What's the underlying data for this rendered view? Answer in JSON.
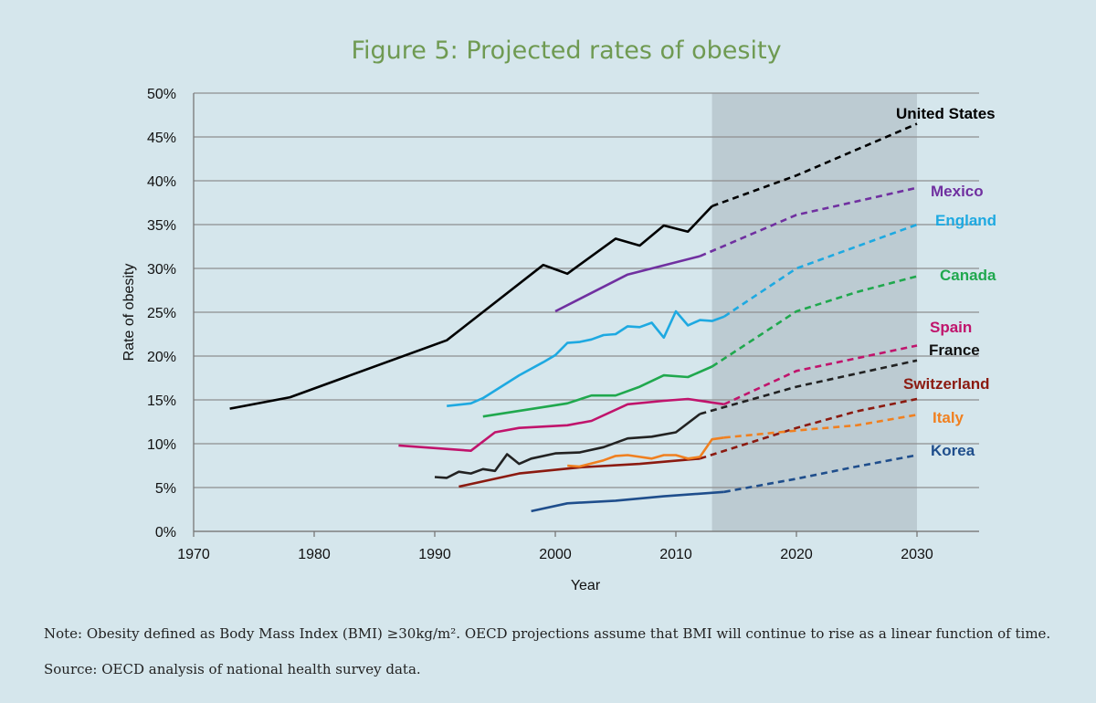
{
  "title": "Figure 5: Projected rates of obesity",
  "note": "Note: Obesity defined as Body Mass Index (BMI) ≥30kg/m². OECD projections assume that BMI will continue to rise as a linear function of time.",
  "source": "Source: OECD analysis of national health survey data.",
  "colors": {
    "background": "#d5e6ec",
    "projection_band": "#bccbd2",
    "title": "#6f9a52"
  },
  "chart_data": {
    "type": "line",
    "title": "Figure 5: Projected rates of obesity",
    "xlabel": "Year",
    "ylabel": "Rate of obesity",
    "xlim": [
      1970,
      2035
    ],
    "ylim": [
      0,
      50
    ],
    "x_ticks": [
      1970,
      1980,
      1990,
      2000,
      2010,
      2020,
      2030
    ],
    "y_ticks": [
      "0%",
      "5%",
      "10%",
      "15%",
      "20%",
      "25%",
      "30%",
      "35%",
      "40%",
      "45%",
      "50%"
    ],
    "y_tick_values": [
      0,
      5,
      10,
      15,
      20,
      25,
      30,
      35,
      40,
      45,
      50
    ],
    "grid": "horizontal",
    "projection_region": [
      2013,
      2030
    ],
    "series": [
      {
        "name": "United States",
        "color": "#000000",
        "actual": [
          [
            1973,
            14
          ],
          [
            1978,
            15.3
          ],
          [
            1991,
            21.8
          ],
          [
            1999,
            30.4
          ],
          [
            2000,
            29.9
          ],
          [
            2001,
            29.4
          ],
          [
            2005,
            33.4
          ],
          [
            2007,
            32.6
          ],
          [
            2009,
            34.9
          ],
          [
            2011,
            34.2
          ],
          [
            2013,
            37.1
          ]
        ],
        "projected": [
          [
            2013,
            37.1
          ],
          [
            2020,
            40.6
          ],
          [
            2030,
            46.5
          ]
        ]
      },
      {
        "name": "Mexico",
        "color": "#7030a0",
        "actual": [
          [
            2000,
            25.1
          ],
          [
            2006,
            29.3
          ],
          [
            2012,
            31.4
          ]
        ],
        "projected": [
          [
            2012,
            31.4
          ],
          [
            2020,
            36.1
          ],
          [
            2030,
            39.2
          ]
        ]
      },
      {
        "name": "England",
        "color": "#1ea9e1",
        "actual": [
          [
            1991,
            14.3
          ],
          [
            1993,
            14.6
          ],
          [
            1994,
            15.2
          ],
          [
            1997,
            17.8
          ],
          [
            1999,
            19.3
          ],
          [
            2000,
            20.1
          ],
          [
            2001,
            21.5
          ],
          [
            2002,
            21.6
          ],
          [
            2003,
            21.9
          ],
          [
            2004,
            22.4
          ],
          [
            2005,
            22.5
          ],
          [
            2006,
            23.4
          ],
          [
            2007,
            23.3
          ],
          [
            2008,
            23.8
          ],
          [
            2009,
            22.1
          ],
          [
            2010,
            25.1
          ],
          [
            2011,
            23.5
          ],
          [
            2012,
            24.1
          ],
          [
            2013,
            24
          ],
          [
            2014,
            24.5
          ]
        ],
        "projected": [
          [
            2014,
            24.5
          ],
          [
            2020,
            30
          ],
          [
            2030,
            35
          ]
        ]
      },
      {
        "name": "Canada",
        "color": "#20a84e",
        "actual": [
          [
            1994,
            13.1
          ],
          [
            2001,
            14.6
          ],
          [
            2003,
            15.5
          ],
          [
            2005,
            15.5
          ],
          [
            2007,
            16.5
          ],
          [
            2009,
            17.8
          ],
          [
            2011,
            17.6
          ],
          [
            2013,
            18.8
          ]
        ],
        "projected": [
          [
            2013,
            18.8
          ],
          [
            2020,
            25.1
          ],
          [
            2025,
            27.3
          ],
          [
            2030,
            29.1
          ]
        ]
      },
      {
        "name": "Spain",
        "color": "#c0146c",
        "actual": [
          [
            1987,
            9.8
          ],
          [
            1993,
            9.2
          ],
          [
            1995,
            11.3
          ],
          [
            1997,
            11.8
          ],
          [
            2001,
            12.1
          ],
          [
            2003,
            12.6
          ],
          [
            2006,
            14.5
          ],
          [
            2009,
            14.9
          ],
          [
            2011,
            15.1
          ],
          [
            2014,
            14.5
          ]
        ],
        "projected": [
          [
            2014,
            14.5
          ],
          [
            2020,
            18.3
          ],
          [
            2030,
            21.2
          ]
        ]
      },
      {
        "name": "France",
        "color": "#222222",
        "actual": [
          [
            1990,
            6.2
          ],
          [
            1991,
            6.1
          ],
          [
            1992,
            6.8
          ],
          [
            1993,
            6.6
          ],
          [
            1994,
            7.1
          ],
          [
            1995,
            6.9
          ],
          [
            1996,
            8.8
          ],
          [
            1997,
            7.7
          ],
          [
            1998,
            8.3
          ],
          [
            2000,
            8.9
          ],
          [
            2002,
            9
          ],
          [
            2004,
            9.6
          ],
          [
            2006,
            10.6
          ],
          [
            2008,
            10.8
          ],
          [
            2010,
            11.3
          ],
          [
            2012,
            13.4
          ]
        ],
        "projected": [
          [
            2012,
            13.4
          ],
          [
            2020,
            16.5
          ],
          [
            2030,
            19.5
          ]
        ]
      },
      {
        "name": "Switzerland",
        "color": "#8b1a10",
        "actual": [
          [
            1992,
            5.1
          ],
          [
            1997,
            6.6
          ],
          [
            2002,
            7.3
          ],
          [
            2007,
            7.7
          ],
          [
            2012,
            8.3
          ]
        ],
        "projected": [
          [
            2012,
            8.3
          ],
          [
            2020,
            11.8
          ],
          [
            2025,
            13.7
          ],
          [
            2030,
            15.1
          ]
        ]
      },
      {
        "name": "Italy",
        "color": "#f08020",
        "actual": [
          [
            2001,
            7.5
          ],
          [
            2002,
            7.4
          ],
          [
            2004,
            8.1
          ],
          [
            2005,
            8.6
          ],
          [
            2006,
            8.7
          ],
          [
            2007,
            8.5
          ],
          [
            2008,
            8.3
          ],
          [
            2009,
            8.7
          ],
          [
            2010,
            8.7
          ],
          [
            2011,
            8.3
          ],
          [
            2012,
            8.5
          ],
          [
            2013,
            10.5
          ],
          [
            2014,
            10.7
          ]
        ],
        "projected": [
          [
            2014,
            10.7
          ],
          [
            2020,
            11.5
          ],
          [
            2025,
            12.1
          ],
          [
            2030,
            13.3
          ]
        ]
      },
      {
        "name": "Korea",
        "color": "#1f4e8c",
        "actual": [
          [
            1998,
            2.3
          ],
          [
            2001,
            3.2
          ],
          [
            2005,
            3.5
          ],
          [
            2009,
            4
          ],
          [
            2014,
            4.5
          ]
        ],
        "projected": [
          [
            2014,
            4.5
          ],
          [
            2020,
            6
          ],
          [
            2025,
            7.4
          ],
          [
            2030,
            8.7
          ]
        ]
      }
    ]
  }
}
